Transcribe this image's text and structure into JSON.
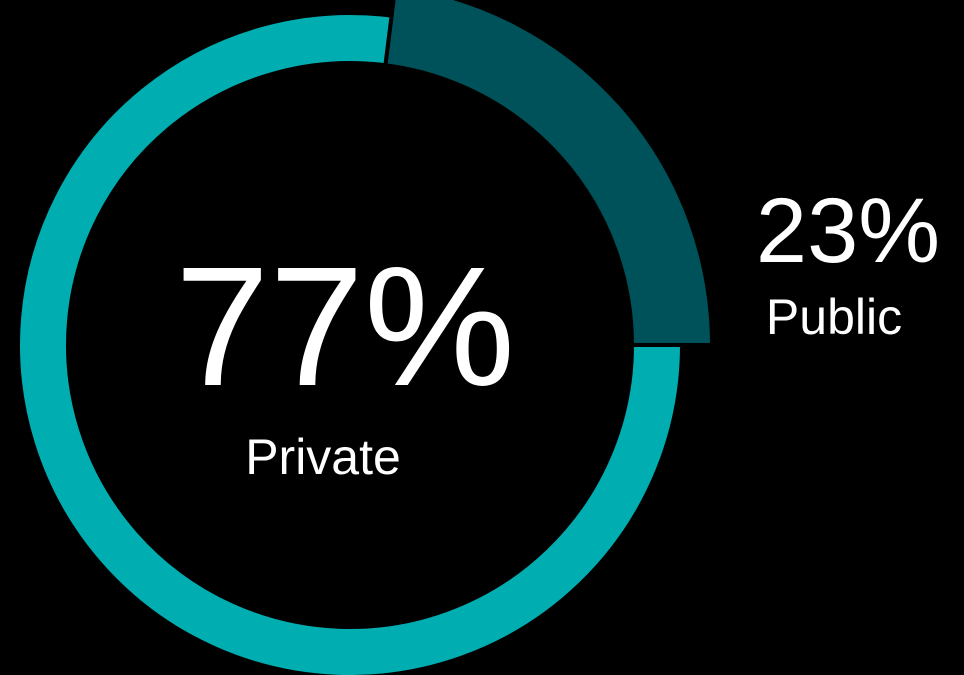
{
  "chart_data": {
    "type": "donut",
    "categories": [
      "Private",
      "Public"
    ],
    "values": [
      77,
      23
    ],
    "value_labels": [
      "77%",
      "23%"
    ],
    "colors": [
      "#00adb0",
      "#00525a"
    ]
  }
}
